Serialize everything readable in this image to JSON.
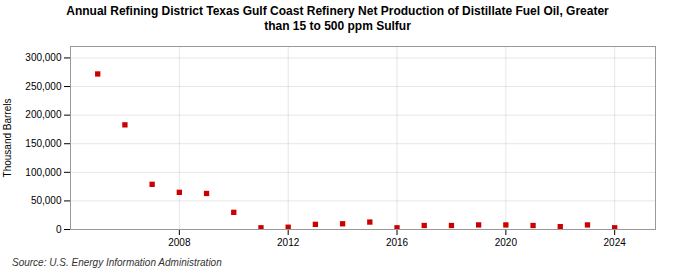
{
  "chart_data": {
    "type": "scatter",
    "title": "Annual Refining District Texas Gulf Coast Refinery Net Production of Distillate Fuel Oil, Greater\nthan 15 to 500 ppm Sulfur",
    "ylabel": "Thousand Barrels",
    "annotation": "Source: U.S. Energy Information Administration",
    "x": [
      2005,
      2006,
      2007,
      2008,
      2009,
      2010,
      2011,
      2012,
      2013,
      2014,
      2015,
      2016,
      2017,
      2018,
      2019,
      2020,
      2021,
      2022,
      2023,
      2024
    ],
    "values": [
      272000,
      183000,
      79000,
      65000,
      63000,
      30000,
      3000,
      4000,
      9000,
      10000,
      13000,
      3000,
      7000,
      7000,
      8000,
      8000,
      7000,
      5000,
      8000,
      3000
    ],
    "color": "#cc0000",
    "marker": "square",
    "xlim": [
      2004.0,
      2025.5
    ],
    "xticks": [
      2008,
      2012,
      2016,
      2020,
      2024
    ],
    "ylim": [
      0,
      320000
    ],
    "yticks": [
      0,
      {
        "value": 50000,
        "label": "50,000"
      },
      {
        "value": 100000,
        "label": "100,000"
      },
      {
        "value": 150000,
        "label": "150,000"
      },
      {
        "value": 200000,
        "label": "200,000"
      },
      {
        "value": 250000,
        "label": "250,000"
      },
      {
        "value": 300000,
        "label": "300,000"
      }
    ],
    "grid": true
  }
}
